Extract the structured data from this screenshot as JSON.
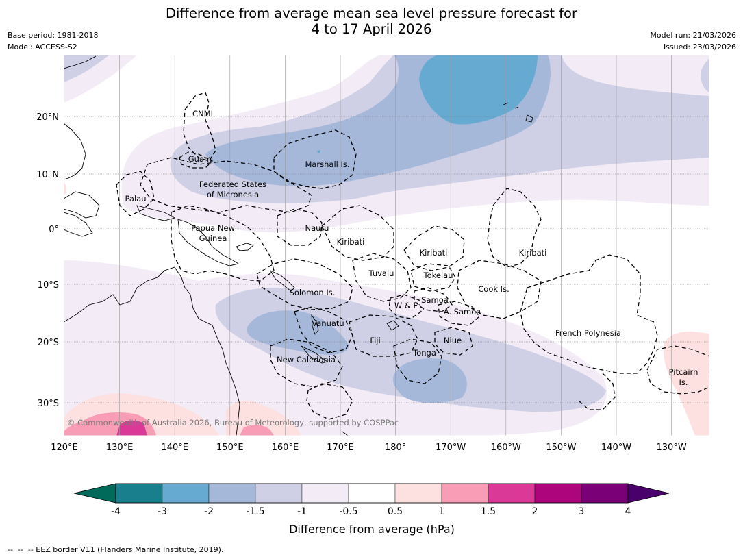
{
  "title": {
    "line1": "Difference from average mean sea level pressure forecast for",
    "line2": "4 to 17 April 2026"
  },
  "meta": {
    "base_period": "Base period: 1981-2018",
    "model": "Model: ACCESS-S2",
    "model_run": "Model run: 21/03/2026",
    "issued": "Issued: 23/03/2026"
  },
  "axes": {
    "lon_labels": [
      "120°E",
      "130°E",
      "140°E",
      "150°E",
      "160°E",
      "170°E",
      "180°",
      "170°W",
      "160°W",
      "150°W",
      "140°W",
      "130°W"
    ],
    "lat_labels": [
      "20°N",
      "10°N",
      "0°",
      "10°S",
      "20°S",
      "30°S"
    ]
  },
  "regions": {
    "cnmi": "CNMI",
    "guam": "Guam",
    "marshall": "Marshall Is.",
    "fsm1": "Federated States",
    "fsm2": "of Micronesia",
    "palau": "Palau",
    "png1": "Papua New",
    "png2": "Guinea",
    "nauru": "Nauru",
    "kiribati_w": "Kiribati",
    "kiribati_c": "Kiribati",
    "kiribati_e": "Kiribati",
    "tuvalu": "Tuvalu",
    "tokelau": "Tokelau",
    "cook": "Cook Is.",
    "solomon": "Solomon Is.",
    "samoa": "Samoa",
    "wf": "W & F",
    "asamoa": "A. Samoa",
    "vanuatu": "Vanuatu",
    "fiji": "Fiji",
    "niue": "Niue",
    "tonga": "Tonga",
    "newcal": "New Caledonia",
    "frpoly": "French Polynesia",
    "pitcairn1": "Pitcairn",
    "pitcairn2": "Is."
  },
  "credit": "© Commonwealth of Australia 2026, Bureau of Meteorology, supported by COSPPac",
  "colorbar": {
    "ticks": [
      "-4",
      "-3",
      "-2",
      "-1.5",
      "-1",
      "-0.5",
      "0.5",
      "1",
      "1.5",
      "2",
      "3",
      "4"
    ],
    "colors": [
      "#197f8c",
      "#66aad2",
      "#a6b8da",
      "#cfd0e6",
      "#f3ecf6",
      "#ffffff",
      "#fde0e0",
      "#f99db7",
      "#db3998",
      "#ad067d",
      "#7a0077"
    ],
    "under_color": "#006a5a",
    "over_color": "#4a006a",
    "label": "Difference from average (hPa)"
  },
  "legend": "--  --  -- EEZ border V11 (Flanders Marine Institute, 2019)."
}
